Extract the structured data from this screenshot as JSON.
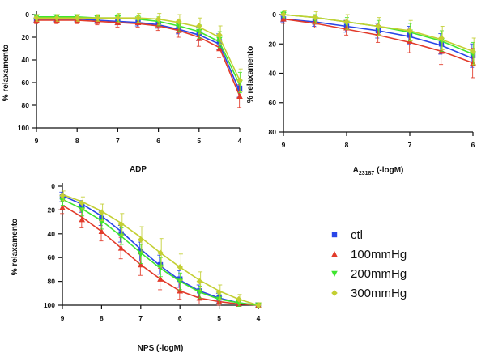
{
  "colors": {
    "ctl": "#2a46e8",
    "100mmHg": "#e23a2a",
    "200mmHg": "#3ee52f",
    "300mmHg": "#c3cf32"
  },
  "legend": [
    {
      "label": "ctl",
      "marker": "square",
      "color": "#2a46e8"
    },
    {
      "label": "100mmHg",
      "marker": "triangle-up",
      "color": "#e23a2a"
    },
    {
      "label": "200mmHg",
      "marker": "triangle-down",
      "color": "#3ee52f"
    },
    {
      "label": "300mmHg",
      "marker": "diamond",
      "color": "#c3cf32"
    }
  ],
  "chart_data": [
    {
      "type": "line",
      "xlabel": "ADP",
      "ylabel": "% relaxamento",
      "xlim": [
        9,
        4
      ],
      "ylim": [
        0,
        100
      ],
      "y_inverted": true,
      "xticks": [
        "9",
        "8",
        "7",
        "6",
        "5",
        "4"
      ],
      "yticks": [
        "0",
        "20",
        "40",
        "60",
        "80",
        "100"
      ],
      "x": [
        9,
        8.5,
        8,
        7.5,
        7,
        6.5,
        6,
        5.5,
        5,
        4.5,
        4
      ],
      "series": [
        {
          "name": "ctl",
          "values": [
            5,
            4,
            4,
            5,
            6,
            7,
            8,
            12,
            17,
            24,
            65
          ],
          "err": [
            2,
            2,
            2,
            2,
            3,
            3,
            4,
            5,
            6,
            7,
            8
          ],
          "curve": [
            4,
            4,
            4,
            5,
            6,
            7,
            9,
            13,
            18,
            26,
            68
          ]
        },
        {
          "name": "100mmHg",
          "values": [
            5,
            5,
            5,
            6,
            7,
            7,
            9,
            14,
            21,
            30,
            72
          ],
          "err": [
            3,
            3,
            3,
            3,
            4,
            4,
            5,
            6,
            7,
            8,
            10
          ],
          "curve": [
            5,
            5,
            5,
            6,
            7,
            8,
            10,
            14,
            20,
            29,
            72
          ]
        },
        {
          "name": "200mmHg",
          "values": [
            2,
            2,
            2,
            3,
            3,
            4,
            6,
            10,
            15,
            22,
            60
          ],
          "err": [
            2,
            2,
            2,
            2,
            3,
            3,
            4,
            5,
            6,
            7,
            9
          ],
          "curve": [
            2,
            2,
            2,
            3,
            3,
            4,
            6,
            10,
            15,
            24,
            62
          ]
        },
        {
          "name": "300mmHg",
          "values": [
            3,
            3,
            3,
            3,
            3,
            3,
            4,
            6,
            10,
            18,
            58
          ],
          "err": [
            3,
            3,
            3,
            3,
            4,
            4,
            5,
            6,
            7,
            8,
            10
          ],
          "curve": [
            3,
            3,
            3,
            3,
            3,
            3,
            4,
            7,
            11,
            20,
            58
          ]
        }
      ]
    },
    {
      "type": "line",
      "xlabel": "A23187 (-logM)",
      "xlabel_main": "A",
      "xlabel_sub": "23187",
      "xlabel_rest": " (-logM)",
      "ylabel": "% relaxamento",
      "xlim": [
        9,
        6
      ],
      "ylim": [
        0,
        80
      ],
      "y_inverted": true,
      "xticks": [
        "9",
        "8",
        "7",
        "6"
      ],
      "yticks": [
        "0",
        "20",
        "40",
        "60",
        "80"
      ],
      "x": [
        9,
        8.5,
        8,
        7.5,
        7,
        6.5,
        6
      ],
      "series": [
        {
          "name": "ctl",
          "values": [
            3,
            5,
            8,
            11,
            14,
            20,
            28
          ],
          "err": [
            2,
            3,
            4,
            5,
            6,
            7,
            8
          ],
          "curve": [
            3,
            5,
            8,
            11,
            15,
            21,
            30
          ]
        },
        {
          "name": "100mmHg",
          "values": [
            3,
            5,
            9,
            13,
            18,
            25,
            33
          ],
          "err": [
            3,
            4,
            5,
            6,
            8,
            9,
            10
          ],
          "curve": [
            3,
            6,
            10,
            14,
            19,
            25,
            33
          ]
        },
        {
          "name": "200mmHg",
          "values": [
            0,
            3,
            6,
            9,
            12,
            18,
            27
          ],
          "err": [
            2,
            3,
            4,
            5,
            6,
            7,
            8
          ],
          "curve": [
            0,
            2,
            5,
            8,
            12,
            18,
            27
          ]
        },
        {
          "name": "300mmHg",
          "values": [
            0,
            2,
            5,
            8,
            11,
            16,
            25
          ],
          "err": [
            3,
            4,
            5,
            6,
            7,
            8,
            9
          ],
          "curve": [
            0,
            2,
            5,
            8,
            11,
            17,
            25
          ]
        }
      ]
    },
    {
      "type": "line",
      "xlabel": "NPS (-logM)",
      "ylabel": "% relaxamento",
      "xlim": [
        9,
        4
      ],
      "ylim": [
        0,
        100
      ],
      "y_inverted": true,
      "xticks": [
        "9",
        "8",
        "7",
        "6",
        "5",
        "4"
      ],
      "yticks": [
        "0",
        "20",
        "40",
        "60",
        "80",
        "100"
      ],
      "x": [
        9,
        8.5,
        8,
        7.5,
        7,
        6.5,
        6,
        5.5,
        5,
        4.5,
        4
      ],
      "series": [
        {
          "name": "ctl",
          "values": [
            9,
            17,
            27,
            40,
            55,
            66,
            78,
            88,
            94,
            98,
            100
          ],
          "err": [
            4,
            5,
            6,
            7,
            8,
            8,
            7,
            5,
            4,
            3,
            2
          ],
          "curve": [
            8,
            15,
            25,
            38,
            53,
            67,
            79,
            88,
            94,
            98,
            100
          ]
        },
        {
          "name": "100mmHg",
          "values": [
            18,
            28,
            38,
            52,
            66,
            78,
            88,
            94,
            97,
            99,
            100
          ],
          "err": [
            5,
            7,
            8,
            9,
            9,
            9,
            7,
            5,
            3,
            2,
            2
          ],
          "curve": [
            16,
            26,
            38,
            52,
            66,
            78,
            88,
            94,
            97,
            99,
            100
          ]
        },
        {
          "name": "200mmHg",
          "values": [
            12,
            20,
            30,
            42,
            57,
            68,
            80,
            89,
            95,
            98,
            100
          ],
          "err": [
            4,
            5,
            6,
            7,
            8,
            8,
            7,
            5,
            4,
            3,
            2
          ],
          "curve": [
            11,
            19,
            29,
            42,
            56,
            69,
            80,
            89,
            95,
            98,
            100
          ]
        },
        {
          "name": "300mmHg",
          "values": [
            8,
            14,
            22,
            32,
            45,
            56,
            68,
            80,
            89,
            95,
            100
          ],
          "err": [
            4,
            5,
            7,
            9,
            11,
            12,
            11,
            8,
            6,
            4,
            2
          ],
          "curve": [
            7,
            13,
            21,
            31,
            43,
            56,
            68,
            79,
            88,
            95,
            100
          ]
        }
      ]
    }
  ]
}
